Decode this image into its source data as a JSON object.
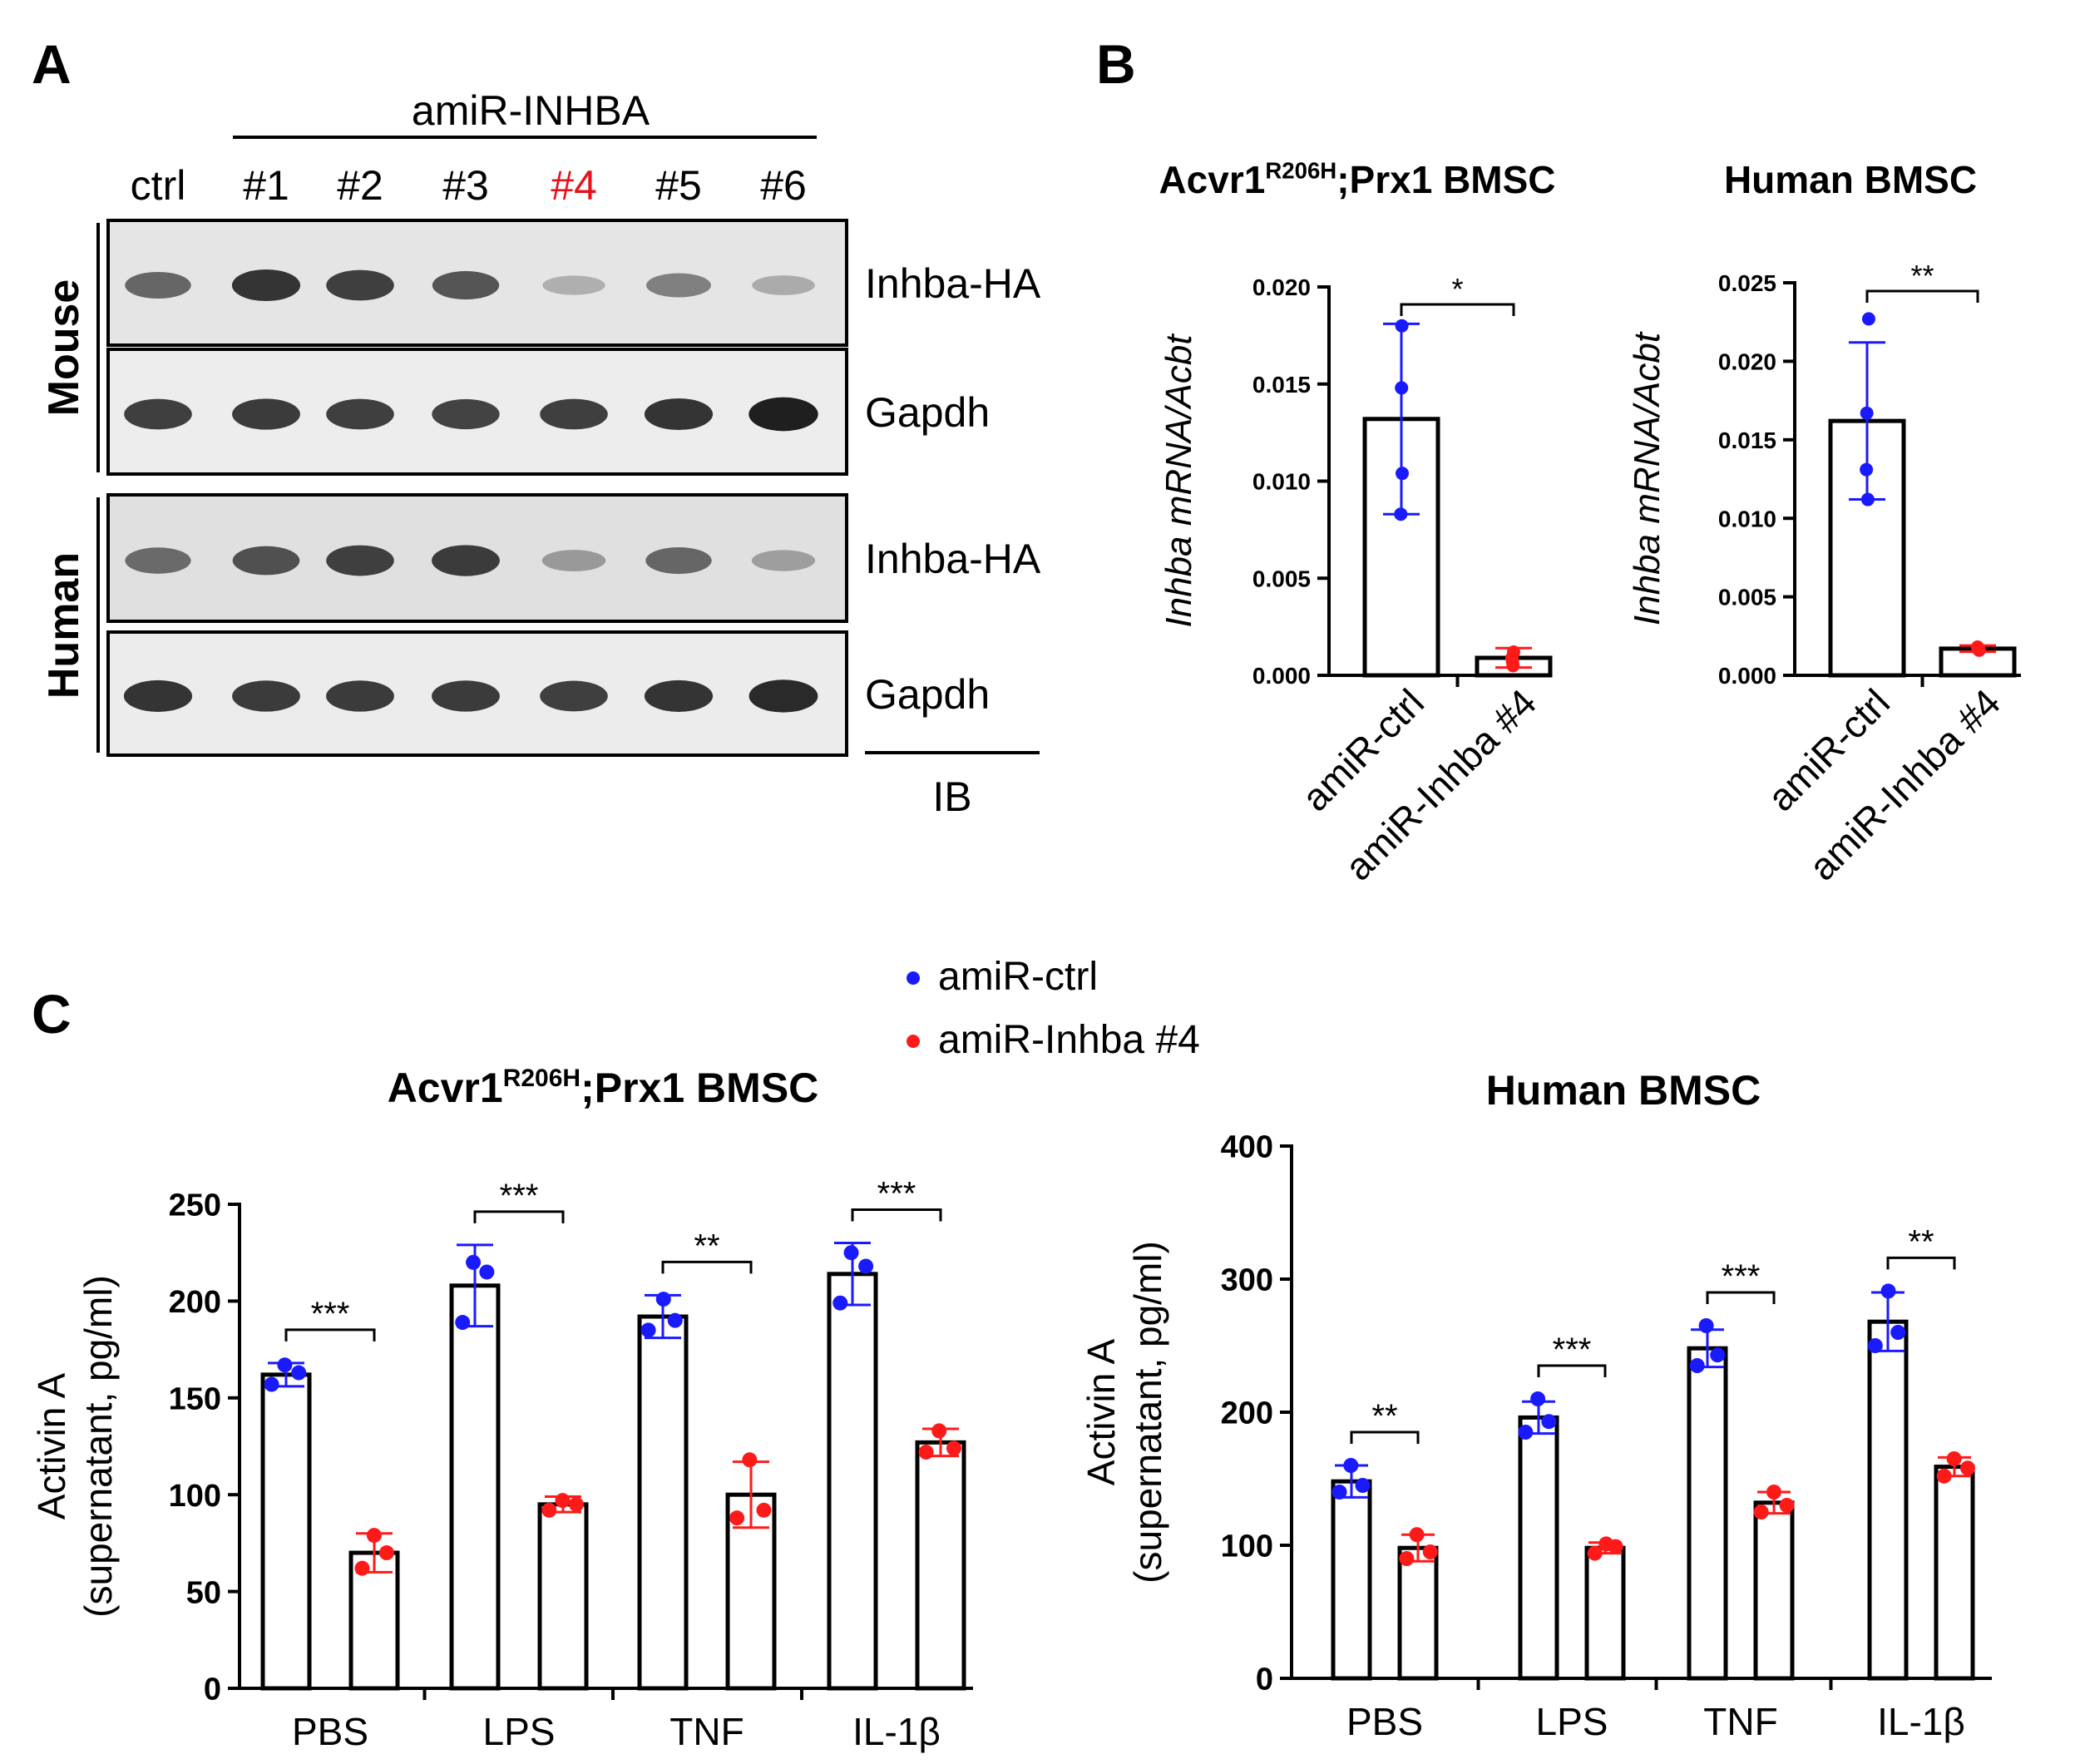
{
  "panels": {
    "A": {
      "letter": "A",
      "group_label": "amiR-INHBA",
      "lanes": [
        "ctrl",
        "#1",
        "#2",
        "#3",
        "#4",
        "#5",
        "#6"
      ],
      "highlight_lane_index": 4,
      "highlight_color": "#e8101a",
      "species": [
        "Mouse",
        "Human"
      ],
      "blot_labels": [
        "Inhba-HA",
        "Gapdh",
        "Inhba-HA",
        "Gapdh"
      ],
      "ib_label": "IB",
      "band_intensity": {
        "mouse_inhba": [
          0.62,
          0.85,
          0.8,
          0.7,
          0.28,
          0.5,
          0.3
        ],
        "mouse_gapdh": [
          0.8,
          0.82,
          0.8,
          0.78,
          0.8,
          0.85,
          0.95
        ],
        "human_inhba": [
          0.6,
          0.72,
          0.8,
          0.82,
          0.38,
          0.62,
          0.36
        ],
        "human_gapdh": [
          0.85,
          0.82,
          0.82,
          0.82,
          0.8,
          0.85,
          0.9
        ]
      }
    },
    "B": {
      "letter": "B",
      "charts": [
        {
          "title_main": "Acvr1",
          "title_sup": "R206H",
          "title_rest": ";Prx1 BMSC",
          "ylabel": "Inhba mRNA/Acbt",
          "ticks": [
            "0.000",
            "0.005",
            "0.010",
            "0.015",
            "0.020"
          ],
          "significance": "*"
        },
        {
          "title_main": "Human BMSC",
          "title_sup": "",
          "title_rest": "",
          "ylabel": "Inhba mRNA/Acbt",
          "ticks": [
            "0.000",
            "0.005",
            "0.010",
            "0.015",
            "0.020",
            "0.025"
          ],
          "significance": "**"
        }
      ]
    },
    "C": {
      "letter": "C",
      "legend": [
        {
          "label": "amiR-ctrl",
          "color": "#1a1aff"
        },
        {
          "label": "amiR-Inhba #4",
          "color": "#ff1a1a"
        }
      ],
      "charts": [
        {
          "title_main": "Acvr1",
          "title_sup": "R206H",
          "title_rest": ";Prx1 BMSC",
          "ylabel_line1": "Activin A",
          "ylabel_line2": "(supernatant, pg/ml)",
          "ticks": [
            "0",
            "50",
            "100",
            "150",
            "200",
            "250"
          ],
          "significance": [
            "***",
            "***",
            "**",
            "***"
          ]
        },
        {
          "title_main": "Human BMSC",
          "title_sup": "",
          "title_rest": "",
          "ylabel_line1": "Activin A",
          "ylabel_line2": "(supernatant, pg/ml)",
          "ticks": [
            "0",
            "100",
            "200",
            "300",
            "400"
          ],
          "significance": [
            "**",
            "***",
            "***",
            "**"
          ]
        }
      ]
    }
  },
  "chart_data": [
    {
      "type": "bar",
      "title": "Acvr1R206H;Prx1 BMSC",
      "ylabel": "Inhba mRNA/Acbt",
      "categories": [
        "amiR-ctrl",
        "amiR-Inhba #4"
      ],
      "values": [
        0.0132,
        0.0009
      ],
      "error": [
        0.0049,
        0.0005
      ],
      "points": [
        [
          0.018,
          0.0083,
          0.0104,
          0.0148
        ],
        [
          0.0005,
          0.0012,
          0.0009,
          0.0007
        ]
      ],
      "point_colors": [
        "#1a1aff",
        "#ff1a1a"
      ],
      "ylim": [
        0,
        0.02
      ]
    },
    {
      "type": "bar",
      "title": "Human BMSC",
      "ylabel": "Inhba mRNA/Acbt",
      "categories": [
        "amiR-ctrl",
        "amiR-Inhba #4"
      ],
      "values": [
        0.0162,
        0.0017
      ],
      "error": [
        0.005,
        0.0002
      ],
      "points": [
        [
          0.0227,
          0.0112,
          0.0131,
          0.0167
        ],
        [
          0.0016,
          0.0018,
          0.0017,
          0.0017
        ]
      ],
      "point_colors": [
        "#1a1aff",
        "#ff1a1a"
      ],
      "ylim": [
        0,
        0.025
      ]
    },
    {
      "type": "bar",
      "title": "Acvr1R206H;Prx1 BMSC",
      "ylabel": "Activin A (supernatant, pg/ml)",
      "categories": [
        "PBS",
        "LPS",
        "TNF",
        "IL-1β"
      ],
      "series": [
        {
          "name": "amiR-ctrl",
          "color": "#1a1aff",
          "values": [
            162,
            208,
            192,
            214
          ],
          "error": [
            6,
            21,
            11,
            16
          ],
          "points": [
            [
              157,
              167,
              163
            ],
            [
              189,
              220,
              215
            ],
            [
              185,
              201,
              190
            ],
            [
              199,
              225,
              218
            ]
          ]
        },
        {
          "name": "amiR-Inhba #4",
          "color": "#ff1a1a",
          "values": [
            70,
            95,
            100,
            127
          ],
          "error": [
            10,
            4,
            17,
            7
          ],
          "points": [
            [
              62,
              79,
              70
            ],
            [
              92,
              97,
              95
            ],
            [
              88,
              118,
              92
            ],
            [
              122,
              133,
              124
            ]
          ]
        }
      ],
      "ylim": [
        0,
        250
      ]
    },
    {
      "type": "bar",
      "title": "Human BMSC",
      "ylabel": "Activin A (supernatant, pg/ml)",
      "categories": [
        "PBS",
        "LPS",
        "TNF",
        "IL-1β"
      ],
      "series": [
        {
          "name": "amiR-ctrl",
          "color": "#1a1aff",
          "values": [
            148,
            196,
            248,
            268
          ],
          "error": [
            12,
            12,
            14,
            22
          ],
          "points": [
            [
              140,
              160,
              145
            ],
            [
              185,
              210,
              193
            ],
            [
              235,
              265,
              243
            ],
            [
              250,
              291,
              260
            ]
          ]
        },
        {
          "name": "amiR-Inhba #4",
          "color": "#ff1a1a",
          "values": [
            98,
            98,
            132,
            159
          ],
          "error": [
            10,
            4,
            8,
            7
          ],
          "points": [
            [
              90,
              108,
              95
            ],
            [
              94,
              101,
              99
            ],
            [
              125,
              140,
              130
            ],
            [
              152,
              165,
              158
            ]
          ]
        }
      ],
      "ylim": [
        0,
        400
      ]
    }
  ]
}
